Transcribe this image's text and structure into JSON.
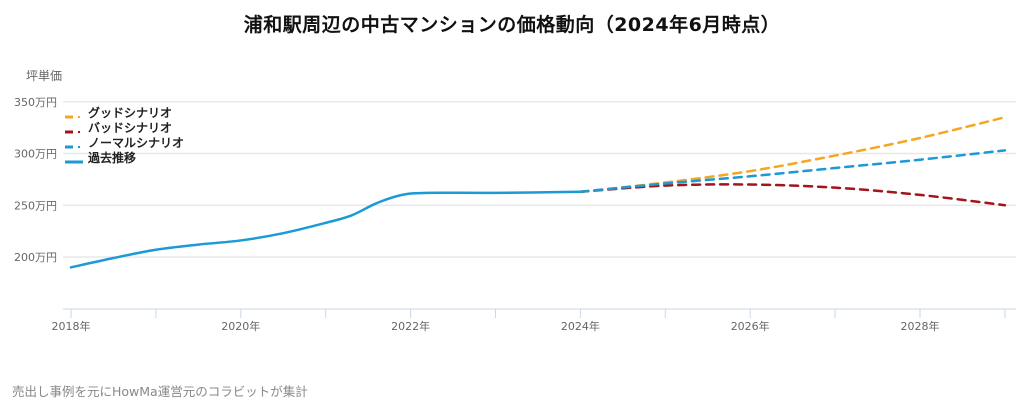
{
  "title": "浦和駅周辺の中古マンションの価格動向（2024年6月時点）",
  "y_axis_title": "坪単価",
  "footer": "売出し事例を元にHowMa運営元のコラビットが集計",
  "legend": [
    {
      "label": "グッドシナリオ",
      "color": "#f5a623",
      "style": "dashed"
    },
    {
      "label": "バッドシナリオ",
      "color": "#a3141c",
      "style": "dashed"
    },
    {
      "label": "ノーマルシナリオ",
      "color": "#1b9ad6",
      "style": "dashed"
    },
    {
      "label": "過去推移",
      "color": "#1b9ad6",
      "style": "solid"
    }
  ],
  "chart_data": {
    "type": "line",
    "title": "浦和駅周辺の中古マンションの価格動向（2024年6月時点）",
    "xlabel": "",
    "ylabel": "坪単価",
    "y_tick_labels": [
      "200万円",
      "250万円",
      "300万円",
      "350万円"
    ],
    "y_ticks": [
      200,
      250,
      300,
      350
    ],
    "x_tick_labels": [
      "2018年",
      "2020年",
      "2022年",
      "2024年",
      "2026年",
      "2028年"
    ],
    "ylim": [
      150,
      350
    ],
    "xlim": [
      2018,
      2029
    ],
    "grid": true,
    "legend_position": "top-left inside",
    "series": [
      {
        "name": "過去推移",
        "style": "solid",
        "color": "#1b9ad6",
        "x": [
          2018,
          2018.5,
          2019,
          2019.5,
          2020,
          2020.5,
          2021,
          2021.3,
          2021.6,
          2021.9,
          2022.2,
          2023,
          2024
        ],
        "values": [
          190,
          199,
          207,
          212,
          216,
          223,
          233,
          240,
          252,
          260,
          262,
          262,
          263
        ]
      },
      {
        "name": "グッドシナリオ",
        "style": "dashed",
        "color": "#f5a623",
        "x": [
          2024,
          2025,
          2026,
          2027,
          2028,
          2029
        ],
        "values": [
          263,
          272,
          283,
          298,
          315,
          335
        ]
      },
      {
        "name": "ノーマルシナリオ",
        "style": "dashed",
        "color": "#1b9ad6",
        "x": [
          2024,
          2025,
          2026,
          2027,
          2028,
          2029
        ],
        "values": [
          263,
          271,
          278,
          286,
          294,
          303
        ]
      },
      {
        "name": "バッドシナリオ",
        "style": "dashed",
        "color": "#a3141c",
        "x": [
          2024,
          2025,
          2026,
          2027,
          2028,
          2029
        ],
        "values": [
          263,
          269,
          270,
          267,
          260,
          250
        ]
      }
    ]
  }
}
